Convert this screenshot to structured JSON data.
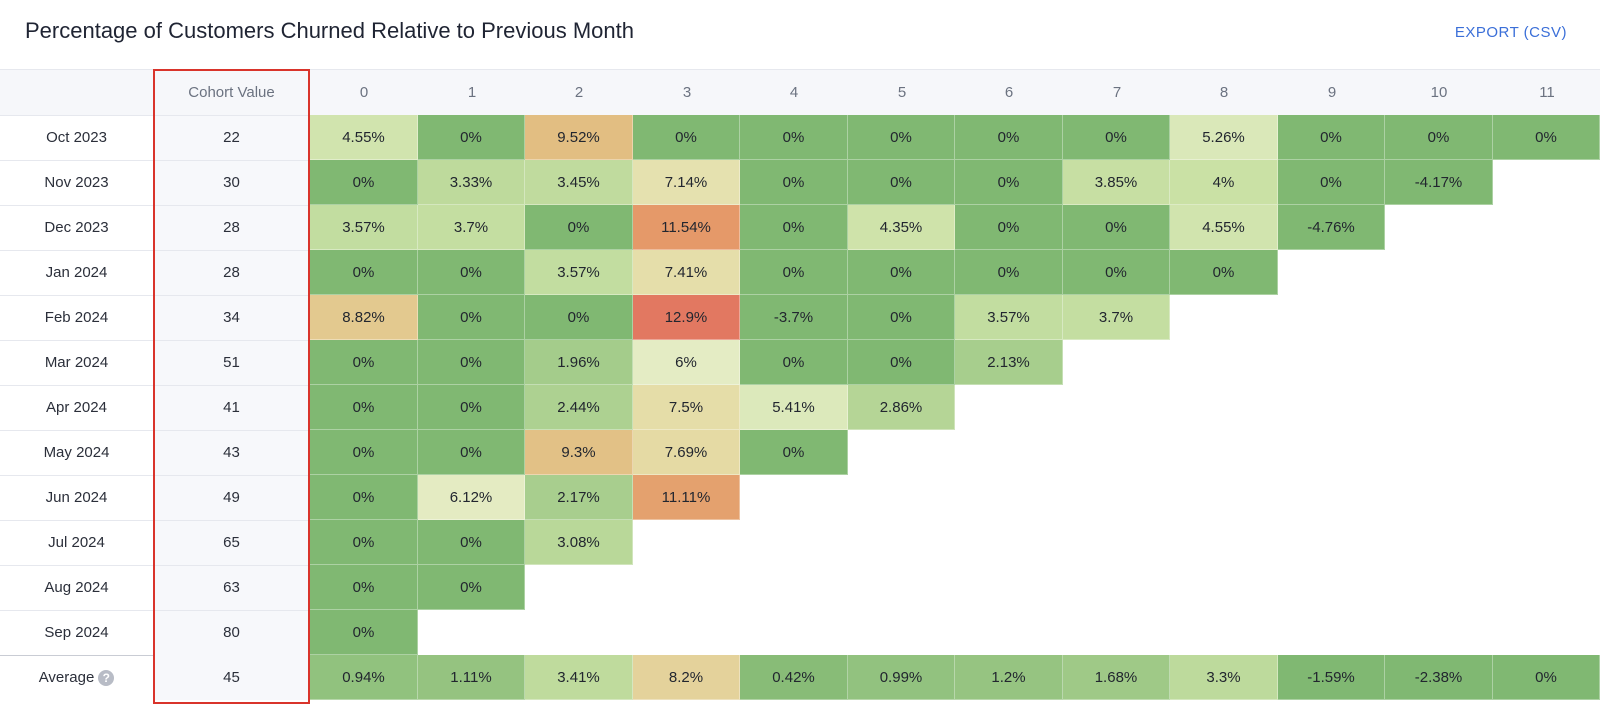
{
  "header": {
    "title": "Percentage of Customers Churned Relative to Previous Month",
    "export_label": "EXPORT (CSV)"
  },
  "table": {
    "cohort_header": "Cohort Value",
    "average_label": "Average",
    "help_glyph": "?"
  },
  "chart_data": {
    "type": "heatmap",
    "title": "Percentage of Customers Churned Relative to Previous Month",
    "columns": [
      "0",
      "1",
      "2",
      "3",
      "4",
      "5",
      "6",
      "7",
      "8",
      "9",
      "10",
      "11"
    ],
    "rows": [
      {
        "label": "Oct 2023",
        "cohort": "22",
        "values": [
          "4.55%",
          "0%",
          "9.52%",
          "0%",
          "0%",
          "0%",
          "0%",
          "0%",
          "5.26%",
          "0%",
          "0%",
          "0%"
        ]
      },
      {
        "label": "Nov 2023",
        "cohort": "30",
        "values": [
          "0%",
          "3.33%",
          "3.45%",
          "7.14%",
          "0%",
          "0%",
          "0%",
          "3.85%",
          "4%",
          "0%",
          "-4.17%"
        ]
      },
      {
        "label": "Dec 2023",
        "cohort": "28",
        "values": [
          "3.57%",
          "3.7%",
          "0%",
          "11.54%",
          "0%",
          "4.35%",
          "0%",
          "0%",
          "4.55%",
          "-4.76%"
        ]
      },
      {
        "label": "Jan 2024",
        "cohort": "28",
        "values": [
          "0%",
          "0%",
          "3.57%",
          "7.41%",
          "0%",
          "0%",
          "0%",
          "0%",
          "0%"
        ]
      },
      {
        "label": "Feb 2024",
        "cohort": "34",
        "values": [
          "8.82%",
          "0%",
          "0%",
          "12.9%",
          "-3.7%",
          "0%",
          "3.57%",
          "3.7%"
        ]
      },
      {
        "label": "Mar 2024",
        "cohort": "51",
        "values": [
          "0%",
          "0%",
          "1.96%",
          "6%",
          "0%",
          "0%",
          "2.13%"
        ]
      },
      {
        "label": "Apr 2024",
        "cohort": "41",
        "values": [
          "0%",
          "0%",
          "2.44%",
          "7.5%",
          "5.41%",
          "2.86%"
        ]
      },
      {
        "label": "May 2024",
        "cohort": "43",
        "values": [
          "0%",
          "0%",
          "9.3%",
          "7.69%",
          "0%"
        ]
      },
      {
        "label": "Jun 2024",
        "cohort": "49",
        "values": [
          "0%",
          "6.12%",
          "2.17%",
          "11.11%"
        ]
      },
      {
        "label": "Jul 2024",
        "cohort": "65",
        "values": [
          "0%",
          "0%",
          "3.08%"
        ]
      },
      {
        "label": "Aug 2024",
        "cohort": "63",
        "values": [
          "0%",
          "0%"
        ]
      },
      {
        "label": "Sep 2024",
        "cohort": "80",
        "values": [
          "0%"
        ]
      }
    ],
    "average": {
      "cohort": "45",
      "values": [
        "0.94%",
        "1.11%",
        "3.41%",
        "8.2%",
        "0.42%",
        "0.99%",
        "1.2%",
        "1.68%",
        "3.3%",
        "-1.59%",
        "-2.38%",
        "0%"
      ]
    }
  },
  "colors": {
    "highlight_frame": "#d9342b",
    "accent": "#3b6fd8"
  }
}
